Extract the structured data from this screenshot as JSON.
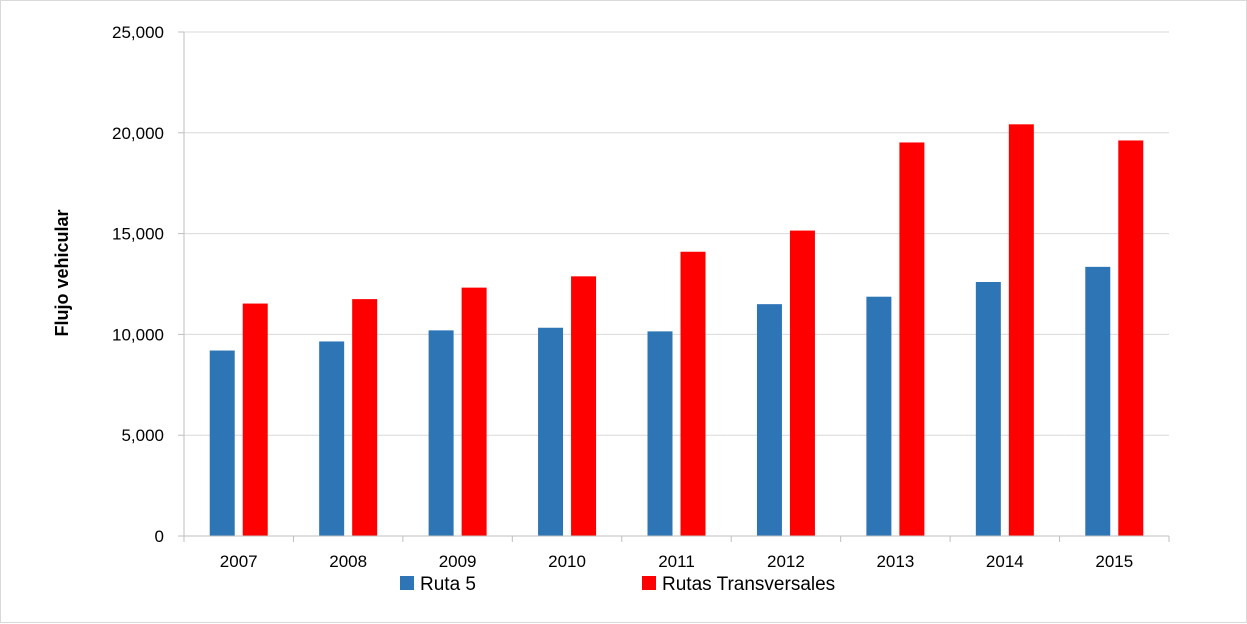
{
  "chart_data": {
    "type": "bar",
    "title": "",
    "xlabel": "",
    "ylabel": "Flujo vehicular",
    "ylim": [
      0,
      25000
    ],
    "yticks": [
      "0",
      "5,000",
      "10,000",
      "15,000",
      "20,000",
      "25,000"
    ],
    "ytick_values": [
      0,
      5000,
      10000,
      15000,
      20000,
      25000
    ],
    "grid": true,
    "legend_position": "bottom",
    "categories": [
      "2007",
      "2008",
      "2009",
      "2010",
      "2011",
      "2012",
      "2013",
      "2014",
      "2015"
    ],
    "series": [
      {
        "name": "Ruta 5",
        "color": "#2e75b6",
        "values": [
          9200,
          9650,
          10200,
          10330,
          10150,
          11500,
          11870,
          12600,
          13350
        ]
      },
      {
        "name": "Rutas Transversales",
        "color": "#ff0000",
        "values": [
          11530,
          11750,
          12320,
          12880,
          14100,
          15150,
          19520,
          20420,
          19620
        ]
      }
    ]
  }
}
